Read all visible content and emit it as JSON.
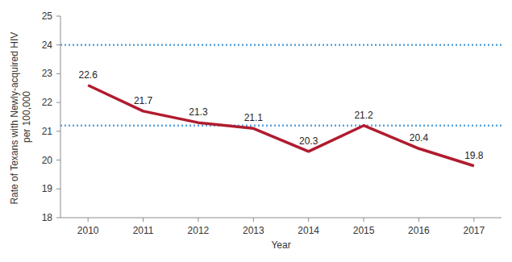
{
  "chart_data": {
    "type": "line",
    "x_label": "Year",
    "y_label": "Rate of Texans with Newly-acquired HIV per 100,000",
    "categories": [
      "2010",
      "2011",
      "2012",
      "2013",
      "2014",
      "2015",
      "2016",
      "2017"
    ],
    "values": [
      22.6,
      21.7,
      21.3,
      21.1,
      20.3,
      21.2,
      20.4,
      19.8
    ],
    "color": "#b01c2e",
    "reference_lines": [
      24,
      21.2
    ],
    "reference_color": "#5ba3dc",
    "ylim": [
      18,
      25
    ],
    "yticks": [
      18,
      19,
      20,
      21,
      22,
      23,
      24,
      25
    ],
    "data_labels": true,
    "grid": false
  }
}
